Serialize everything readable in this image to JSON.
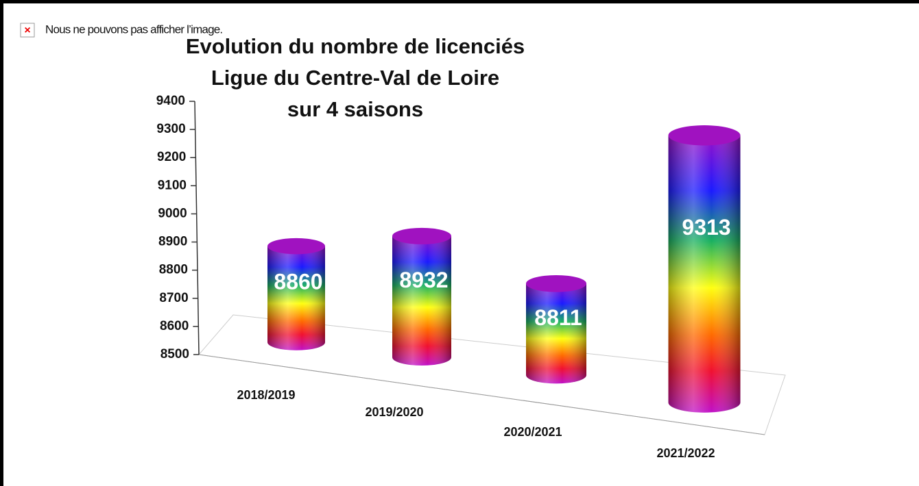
{
  "notice": "Nous ne pouvons pas afficher l’image.",
  "chart_data": {
    "type": "cylinder",
    "title": [
      "Evolution du nombre de licenciés",
      "Ligue du Centre-Val de Loire",
      "sur 4 saisons"
    ],
    "categories": [
      "2018/2019",
      "2019/2020",
      "2020/2021",
      "2021/2022"
    ],
    "values": [
      8860,
      8932,
      8811,
      9313
    ],
    "ylim": [
      8500,
      9400
    ],
    "yticks": [
      8500,
      8600,
      8700,
      8800,
      8900,
      9000,
      9100,
      9200,
      9300,
      9400
    ]
  }
}
